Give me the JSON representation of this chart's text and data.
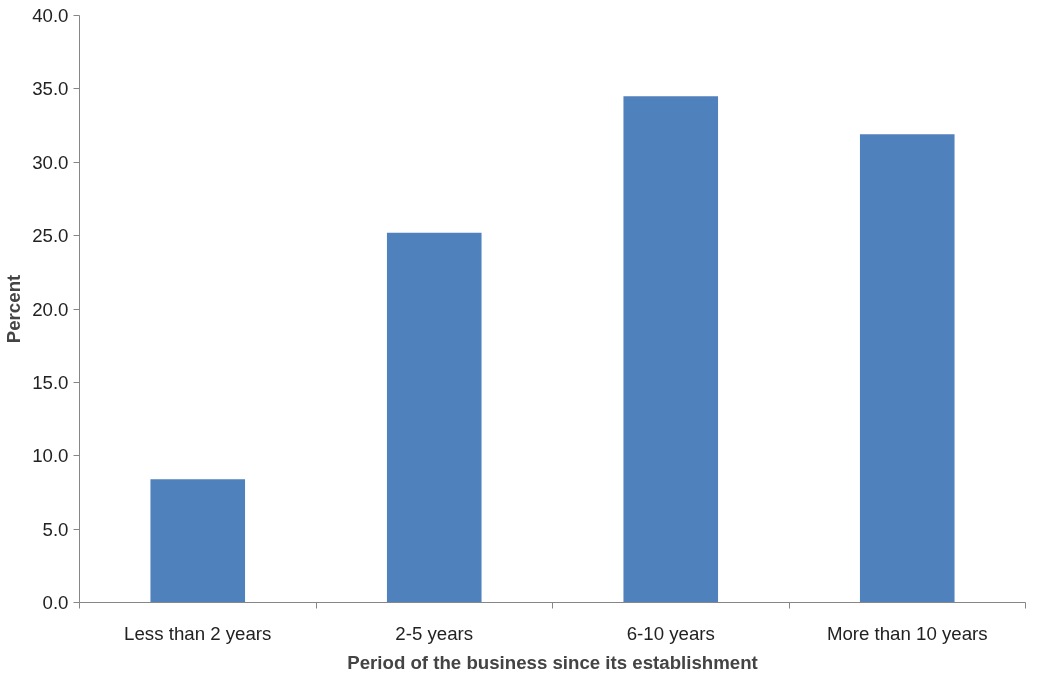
{
  "chart_data": {
    "type": "bar",
    "xlabel": "Period of the business since its establishment",
    "ylabel": "Percent",
    "categories": [
      "Less than 2 years",
      "2-5 years",
      "6-10 years",
      "More than 10 years"
    ],
    "values": [
      8.4,
      25.2,
      34.5,
      31.9
    ],
    "color": "#4f81bd",
    "ylim": [
      0,
      40
    ],
    "yticks": [
      {
        "value": 0,
        "label": "0.0"
      },
      {
        "value": 5,
        "label": "5.0"
      },
      {
        "value": 10,
        "label": "10.0"
      },
      {
        "value": 15,
        "label": "15.0"
      },
      {
        "value": 20,
        "label": "20.0"
      },
      {
        "value": 25,
        "label": "25.0"
      },
      {
        "value": 30,
        "label": "30.0"
      },
      {
        "value": 35,
        "label": "35.0"
      },
      {
        "value": 40,
        "label": "40.0"
      }
    ],
    "grid": false
  }
}
